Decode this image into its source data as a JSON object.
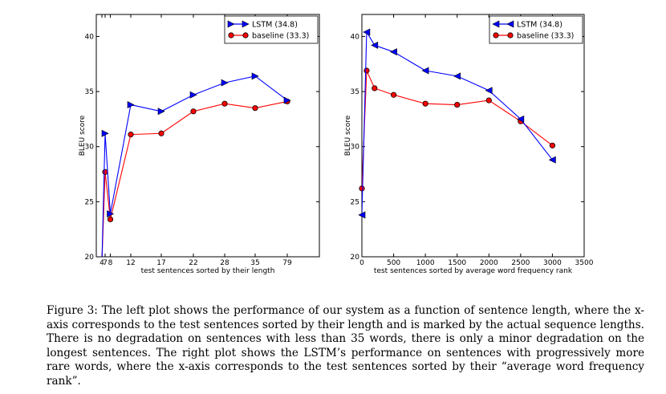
{
  "chart_data": [
    {
      "type": "line",
      "xlabel": "test sentences sorted by their length",
      "ylabel": "BLEU score",
      "ylim": [
        20,
        42
      ],
      "yticks": [
        20,
        25,
        30,
        35,
        40
      ],
      "x_tick_labels": [
        "4",
        "7",
        "8",
        "12",
        "17",
        "22",
        "28",
        "35",
        "79"
      ],
      "x": [
        4,
        7,
        8,
        12,
        17,
        22,
        28,
        35,
        79
      ],
      "legend_loc": "top-right",
      "series": [
        {
          "name": "LSTM  (34.8)",
          "color": "#0000ff",
          "marker": "triangle-right",
          "values": [
            19.5,
            31.2,
            23.9,
            33.8,
            33.2,
            34.7,
            35.8,
            36.4,
            34.2
          ]
        },
        {
          "name": "baseline (33.3)",
          "color": "#ff0000",
          "marker": "circle",
          "values": [
            19.5,
            27.7,
            23.4,
            31.1,
            31.2,
            33.2,
            33.9,
            33.5,
            34.1
          ]
        }
      ]
    },
    {
      "type": "line",
      "xlabel": "test sentences sorted by average word frequency rank",
      "ylabel": "BLEU score",
      "xlim": [
        0,
        3500
      ],
      "ylim": [
        20,
        42
      ],
      "yticks": [
        20,
        25,
        30,
        35,
        40
      ],
      "xticks": [
        0,
        500,
        1000,
        1500,
        2000,
        2500,
        3000,
        3500
      ],
      "legend_loc": "top-right",
      "series": [
        {
          "name": "LSTM  (34.8)",
          "color": "#0000ff",
          "marker": "triangle-left",
          "x": [
            0,
            75,
            200,
            500,
            1000,
            1500,
            2000,
            2500,
            3000
          ],
          "values": [
            23.8,
            40.4,
            39.2,
            38.6,
            36.9,
            36.4,
            35.1,
            32.5,
            28.8
          ]
        },
        {
          "name": "baseline (33.3)",
          "color": "#ff0000",
          "marker": "circle",
          "x": [
            0,
            75,
            200,
            500,
            1000,
            1500,
            2000,
            2500,
            3000
          ],
          "values": [
            26.2,
            36.9,
            35.3,
            34.7,
            33.9,
            33.8,
            34.2,
            32.3,
            30.1
          ]
        }
      ]
    }
  ],
  "caption": "Figure 3: The left plot shows the performance of our system as a function of sentence length, where the x-axis corresponds to the test sentences sorted by their length and is marked by the actual sequence lengths. There is no degradation on sentences with less than 35 words, there is only a minor degradation on the longest sentences. The right plot shows the LSTM’s performance on sentences with progressively more rare words, where the x-axis corresponds to the test sentences sorted by their “average word frequency rank”."
}
